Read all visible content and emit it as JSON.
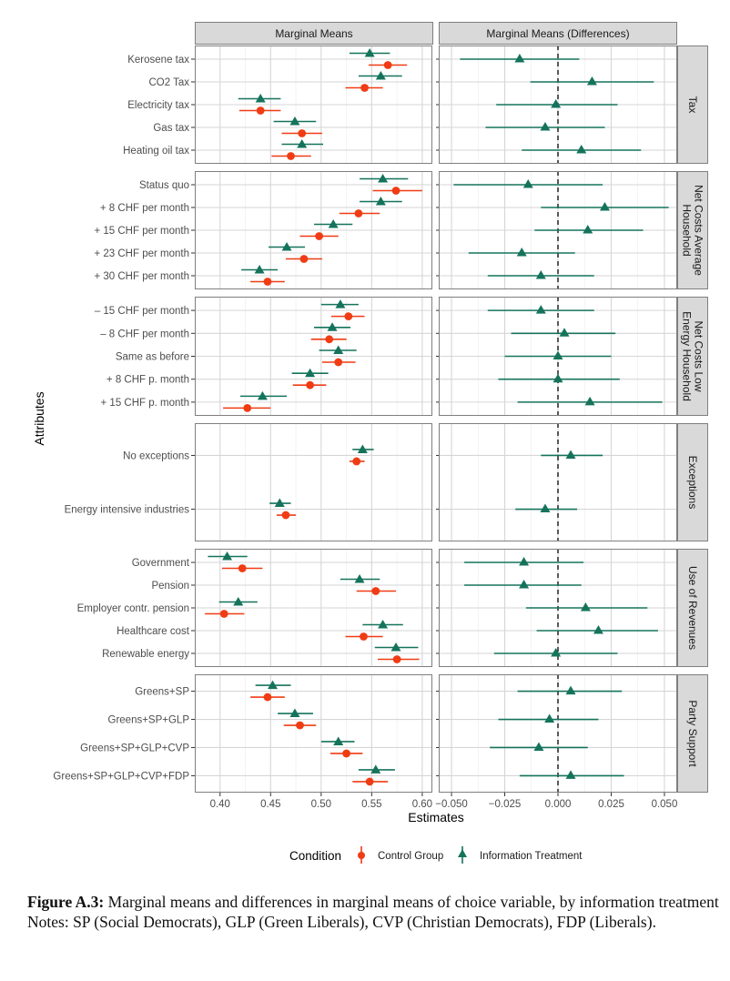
{
  "chart_data": {
    "type": "scatter",
    "subtype": "coefficient-plot-with-error-bars",
    "facet_titles": [
      "Marginal Means",
      "Marginal Means (Differences)"
    ],
    "xlabel": "Estimates",
    "ylabel": "Attributes",
    "left_panel": {
      "xlim": [
        0.375,
        0.61
      ],
      "ticks": [
        0.4,
        0.45,
        0.5,
        0.55,
        0.6
      ],
      "tick_labels": [
        "0.40",
        "0.45",
        "0.50",
        "0.55",
        "0.60"
      ]
    },
    "right_panel": {
      "xlim": [
        -0.056,
        0.056
      ],
      "ticks": [
        -0.05,
        -0.025,
        0.0,
        0.025,
        0.05
      ],
      "tick_labels": [
        "−0.050",
        "−0.025",
        "0.000",
        "0.025",
        "0.050"
      ],
      "reference_line": 0.0
    },
    "grid": true,
    "legend": {
      "position": "bottom",
      "title": "Condition",
      "entries": [
        {
          "name": "Control Group",
          "color": "#f03c14",
          "shape": "circle"
        },
        {
          "name": "Information Treatment",
          "color": "#15735c",
          "shape": "triangle"
        }
      ]
    },
    "groups": [
      {
        "name": "Tax",
        "levels": [
          {
            "label": "Kerosene tax",
            "control": [
              0.566,
              0.547,
              0.585
            ],
            "treatment": [
              0.548,
              0.528,
              0.568
            ],
            "diff": [
              -0.018,
              -0.046,
              0.01
            ]
          },
          {
            "label": "CO2 Tax",
            "control": [
              0.543,
              0.524,
              0.561
            ],
            "treatment": [
              0.559,
              0.537,
              0.58
            ],
            "diff": [
              0.016,
              -0.013,
              0.045
            ]
          },
          {
            "label": "Electricity tax",
            "control": [
              0.44,
              0.419,
              0.46
            ],
            "treatment": [
              0.44,
              0.418,
              0.46
            ],
            "diff": [
              -0.001,
              -0.029,
              0.028
            ]
          },
          {
            "label": "Gas tax",
            "control": [
              0.481,
              0.461,
              0.501
            ],
            "treatment": [
              0.474,
              0.453,
              0.495
            ],
            "diff": [
              -0.006,
              -0.034,
              0.022
            ]
          },
          {
            "label": "Heating oil tax",
            "control": [
              0.47,
              0.451,
              0.49
            ],
            "treatment": [
              0.481,
              0.461,
              0.502
            ],
            "diff": [
              0.011,
              -0.017,
              0.039
            ]
          }
        ]
      },
      {
        "name": "Net Costs Average Household",
        "strip_lines": [
          "Net Costs Average",
          "Household"
        ],
        "levels": [
          {
            "label": "Status quo",
            "control": [
              0.574,
              0.551,
              0.6
            ],
            "treatment": [
              0.561,
              0.538,
              0.586
            ],
            "diff": [
              -0.014,
              -0.049,
              0.021
            ]
          },
          {
            "label": "+ 8 CHF per month",
            "control": [
              0.537,
              0.518,
              0.558
            ],
            "treatment": [
              0.559,
              0.538,
              0.58
            ],
            "diff": [
              0.022,
              -0.008,
              0.052
            ]
          },
          {
            "label": "+ 15 CHF per month",
            "control": [
              0.498,
              0.479,
              0.517
            ],
            "treatment": [
              0.512,
              0.493,
              0.531
            ],
            "diff": [
              0.014,
              -0.011,
              0.04
            ]
          },
          {
            "label": "+ 23 CHF per month",
            "control": [
              0.483,
              0.465,
              0.501
            ],
            "treatment": [
              0.466,
              0.448,
              0.484
            ],
            "diff": [
              -0.017,
              -0.042,
              0.008
            ]
          },
          {
            "label": "+ 30 CHF per month",
            "control": [
              0.447,
              0.43,
              0.464
            ],
            "treatment": [
              0.439,
              0.421,
              0.457
            ],
            "diff": [
              -0.008,
              -0.033,
              0.017
            ]
          }
        ]
      },
      {
        "name": "Net Costs Low Energy Household",
        "strip_lines": [
          "Net Costs Low",
          "Energy Household"
        ],
        "levels": [
          {
            "label": "– 15 CHF per month",
            "control": [
              0.527,
              0.51,
              0.543
            ],
            "treatment": [
              0.519,
              0.5,
              0.537
            ],
            "diff": [
              -0.008,
              -0.033,
              0.017
            ]
          },
          {
            "label": "– 8 CHF per month",
            "control": [
              0.508,
              0.49,
              0.525
            ],
            "treatment": [
              0.511,
              0.493,
              0.529
            ],
            "diff": [
              0.003,
              -0.022,
              0.027
            ]
          },
          {
            "label": "Same as before",
            "control": [
              0.517,
              0.501,
              0.534
            ],
            "treatment": [
              0.517,
              0.498,
              0.535
            ],
            "diff": [
              0.0,
              -0.025,
              0.025
            ]
          },
          {
            "label": "+ 8 CHF p. month",
            "control": [
              0.489,
              0.472,
              0.505
            ],
            "treatment": [
              0.489,
              0.471,
              0.507
            ],
            "diff": [
              0.0,
              -0.028,
              0.029
            ]
          },
          {
            "label": "+ 15 CHF p. month",
            "control": [
              0.427,
              0.403,
              0.45
            ],
            "treatment": [
              0.442,
              0.42,
              0.466
            ],
            "diff": [
              0.015,
              -0.019,
              0.049
            ]
          }
        ]
      },
      {
        "name": "Exceptions",
        "levels": [
          {
            "label": "No exceptions",
            "control": [
              0.535,
              0.528,
              0.543
            ],
            "treatment": [
              0.541,
              0.531,
              0.552
            ],
            "diff": [
              0.006,
              -0.008,
              0.021
            ]
          },
          {
            "label": "Energy intensive industries",
            "control": [
              0.465,
              0.456,
              0.475
            ],
            "treatment": [
              0.459,
              0.449,
              0.47
            ],
            "diff": [
              -0.006,
              -0.02,
              0.009
            ]
          }
        ]
      },
      {
        "name": "Use of Revenues",
        "levels": [
          {
            "label": "Government",
            "control": [
              0.422,
              0.402,
              0.442
            ],
            "treatment": [
              0.407,
              0.388,
              0.427
            ],
            "diff": [
              -0.016,
              -0.044,
              0.012
            ]
          },
          {
            "label": "Pension",
            "control": [
              0.554,
              0.535,
              0.574
            ],
            "treatment": [
              0.538,
              0.519,
              0.558
            ],
            "diff": [
              -0.016,
              -0.044,
              0.011
            ]
          },
          {
            "label": "Employer contr. pension",
            "control": [
              0.404,
              0.385,
              0.424
            ],
            "treatment": [
              0.418,
              0.399,
              0.437
            ],
            "diff": [
              0.013,
              -0.015,
              0.042
            ]
          },
          {
            "label": "Healthcare cost",
            "control": [
              0.542,
              0.524,
              0.561
            ],
            "treatment": [
              0.561,
              0.541,
              0.581
            ],
            "diff": [
              0.019,
              -0.01,
              0.047
            ]
          },
          {
            "label": "Renewable energy",
            "control": [
              0.575,
              0.556,
              0.597
            ],
            "treatment": [
              0.574,
              0.553,
              0.596
            ],
            "diff": [
              -0.001,
              -0.03,
              0.028
            ]
          }
        ]
      },
      {
        "name": "Party Support",
        "levels": [
          {
            "label": "Greens+SP",
            "control": [
              0.447,
              0.43,
              0.464
            ],
            "treatment": [
              0.452,
              0.435,
              0.47
            ],
            "diff": [
              0.006,
              -0.019,
              0.03
            ]
          },
          {
            "label": "Greens+SP+GLP",
            "control": [
              0.479,
              0.463,
              0.495
            ],
            "treatment": [
              0.474,
              0.457,
              0.492
            ],
            "diff": [
              -0.004,
              -0.028,
              0.019
            ]
          },
          {
            "label": "Greens+SP+GLP+CVP",
            "control": [
              0.525,
              0.509,
              0.541
            ],
            "treatment": [
              0.517,
              0.5,
              0.533
            ],
            "diff": [
              -0.009,
              -0.032,
              0.014
            ]
          },
          {
            "label": "Greens+SP+GLP+CVP+FDP",
            "control": [
              0.548,
              0.531,
              0.566
            ],
            "treatment": [
              0.554,
              0.537,
              0.573
            ],
            "diff": [
              0.006,
              -0.018,
              0.031
            ]
          }
        ]
      }
    ]
  },
  "caption": {
    "label": "Figure A.3:",
    "text": " Marginal means and differences in marginal means of choice variable, by infor­mation treatment",
    "notes": "Notes: SP (Social Democrats), GLP (Green Liberals), CVP (Christian Democrats), FDP (Liber­als)."
  }
}
